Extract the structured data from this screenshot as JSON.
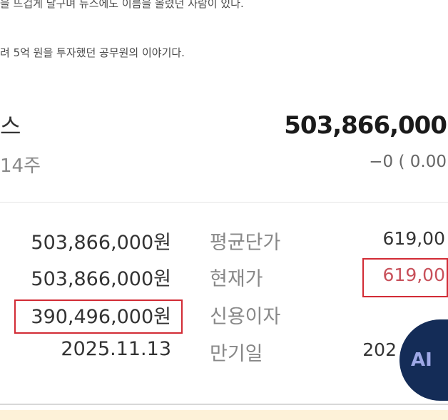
{
  "article": {
    "line1": "을 뜨겁게 달구며 뉴스에도 이름을 올렸던 사람이 있다.",
    "line2": "려 5억 원을 투자했던 공무원의 이야기다."
  },
  "holding": {
    "name": "스",
    "quantity": "14주",
    "total_value": "503,866,000",
    "change": "−0 ( 0.00"
  },
  "rows": [
    {
      "left_value": "503,866,000원",
      "label": "평균단가",
      "right_value": "619,00"
    },
    {
      "left_value": "503,866,000원",
      "label": "현재가",
      "right_value": "619,00"
    },
    {
      "left_value": "390,496,000원",
      "label": "신용이자",
      "right_value": ""
    },
    {
      "left_value": "2025.11.13",
      "label": "만기일",
      "right_value": "202"
    }
  ],
  "ai_button": {
    "label": "AI"
  },
  "colors": {
    "highlight_box": "#d22b35",
    "price_red": "#c8505a",
    "ai_button_bg": "#142c57"
  }
}
